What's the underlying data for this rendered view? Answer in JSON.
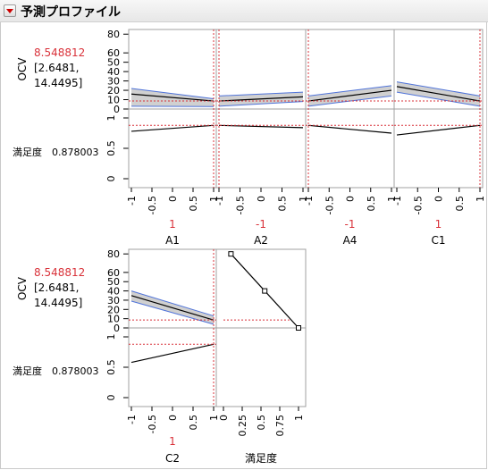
{
  "title": "予測プロファイル",
  "response_label": "OCV",
  "response_value": "8.548812",
  "response_ci_low": "[2.6481,",
  "response_ci_high": "14.4495]",
  "desirability_label": "満足度",
  "desirability_value": "0.878003",
  "ocv_ticks": [
    "80",
    "60",
    "50",
    "40",
    "30",
    "20",
    "10",
    "0"
  ],
  "desir_ticks": [
    "1",
    "0.5",
    "0"
  ],
  "x_ticks": [
    "-1",
    "-0.5",
    "0",
    "0.5",
    "1"
  ],
  "desir_x_ticks": [
    "0",
    "0.25",
    "0.5",
    "0.75",
    "1"
  ],
  "colors": {
    "current": "#d9323a",
    "band_fill": "#c8c8c8",
    "band_edge": "#4f73d9",
    "line": "#000000"
  },
  "factors": [
    {
      "name": "A1",
      "value": "1",
      "current": 1,
      "ocv": [
        16,
        8.55
      ],
      "ocv_band": [
        [
          22,
          11
        ],
        [
          3,
          2.6
        ]
      ],
      "desir": [
        0.78,
        0.878
      ]
    },
    {
      "name": "A2",
      "value": "-1",
      "current": -1,
      "ocv": [
        8.55,
        13
      ],
      "ocv_band": [
        [
          14,
          18
        ],
        [
          3,
          8
        ]
      ],
      "desir": [
        0.878,
        0.84
      ]
    },
    {
      "name": "A4",
      "value": "-1",
      "current": -1,
      "ocv": [
        8.55,
        20
      ],
      "ocv_band": [
        [
          14,
          25
        ],
        [
          3,
          14
        ]
      ],
      "desir": [
        0.878,
        0.75
      ]
    },
    {
      "name": "C1",
      "value": "1",
      "current": 1,
      "ocv": [
        24,
        8.55
      ],
      "ocv_band": [
        [
          29,
          14
        ],
        [
          18,
          3
        ]
      ],
      "desir": [
        0.72,
        0.878
      ]
    },
    {
      "name": "C2",
      "value": "1",
      "current": 1,
      "ocv": [
        35,
        8.55
      ],
      "ocv_band": [
        [
          40,
          13
        ],
        [
          29,
          4
        ]
      ],
      "desir": [
        0.58,
        0.878
      ]
    }
  ],
  "desirability_function": {
    "name": "満足度",
    "points": [
      [
        80,
        0.1
      ],
      [
        40,
        0.55
      ],
      [
        0,
        1.0
      ]
    ]
  }
}
